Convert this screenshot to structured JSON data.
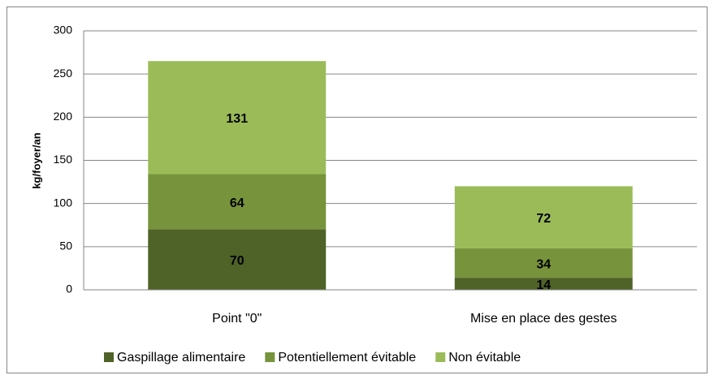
{
  "chart_data": {
    "type": "stacked_bar",
    "categories": [
      "Point \"0\"",
      "Mise en place des gestes"
    ],
    "series": [
      {
        "name": "Gaspillage alimentaire",
        "color": "#4f6228",
        "values": [
          70,
          14
        ]
      },
      {
        "name": "Potentiellement évitable",
        "color": "#77933c",
        "values": [
          64,
          34
        ]
      },
      {
        "name": "Non évitable",
        "color": "#9bbb59",
        "values": [
          131,
          72
        ]
      }
    ],
    "y_label": "kg/foyer/an",
    "ylim": [
      0,
      300
    ],
    "yticks": [
      0,
      50,
      100,
      150,
      200,
      250,
      300
    ],
    "grid": true,
    "legend": "bottom"
  }
}
